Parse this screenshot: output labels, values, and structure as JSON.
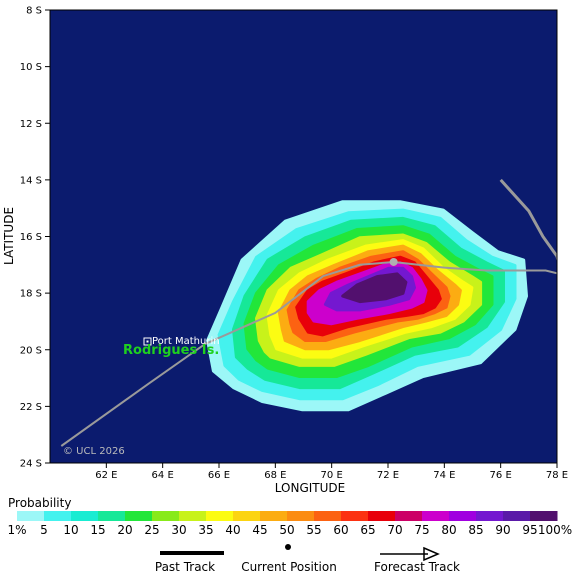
{
  "map": {
    "lat_ticks": [
      "8 S",
      "10 S",
      "12 S",
      "14 S",
      "16 S",
      "18 S",
      "20 S",
      "22 S",
      "24 S"
    ],
    "lon_ticks": [
      "62 E",
      "64 E",
      "66 E",
      "68 E",
      "70 E",
      "72 E",
      "74 E",
      "76 E",
      "78 E"
    ],
    "x_axis_title": "LONGITUDE",
    "y_axis_title": "LATITUDE",
    "copyright": "© UCL 2026",
    "island_label": "Rodrigues Is.",
    "town_label": "Port Mathurin",
    "ocean_color": "#0b1b6e",
    "past_track_points": [
      [
        60.4,
        23.4
      ],
      [
        63.5,
        21.2
      ],
      [
        65.5,
        19.8
      ],
      [
        68.0,
        18.7
      ],
      [
        69.7,
        17.4
      ],
      [
        71.0,
        17.0
      ],
      [
        72.2,
        16.9
      ],
      [
        74.0,
        17.1
      ],
      [
        75.5,
        17.2
      ],
      [
        76.0,
        17.2
      ],
      [
        77.0,
        17.2
      ],
      [
        77.6,
        17.2
      ],
      [
        78.0,
        17.3
      ]
    ],
    "forecast_track_points": [
      [
        76.0,
        14.0
      ],
      [
        77.0,
        15.1
      ],
      [
        77.5,
        16.0
      ],
      [
        78.0,
        16.7
      ],
      [
        78.2,
        17.5
      ]
    ],
    "current_position": [
      72.2,
      16.9
    ]
  },
  "legend": {
    "title": "Probability",
    "labels": [
      "1%",
      "5",
      "10",
      "15",
      "20",
      "25",
      "30",
      "35",
      "40",
      "45",
      "50",
      "55",
      "60",
      "65",
      "70",
      "75",
      "80",
      "85",
      "90",
      "95",
      "100%"
    ],
    "colors": [
      "#9cf7f7",
      "#44f2ee",
      "#19ecd2",
      "#16e898",
      "#22e63a",
      "#88ea1a",
      "#c8f21a",
      "#fcfc12",
      "#fcd412",
      "#fcac12",
      "#fc8c12",
      "#fc6212",
      "#fc3212",
      "#e8000a",
      "#cc0066",
      "#cc00cc",
      "#a000e0",
      "#7418d0",
      "#5a1aa8",
      "#52106e"
    ],
    "past_track": "Past Track",
    "current_position": "Current Position",
    "forecast_track": "Forecast Track"
  }
}
